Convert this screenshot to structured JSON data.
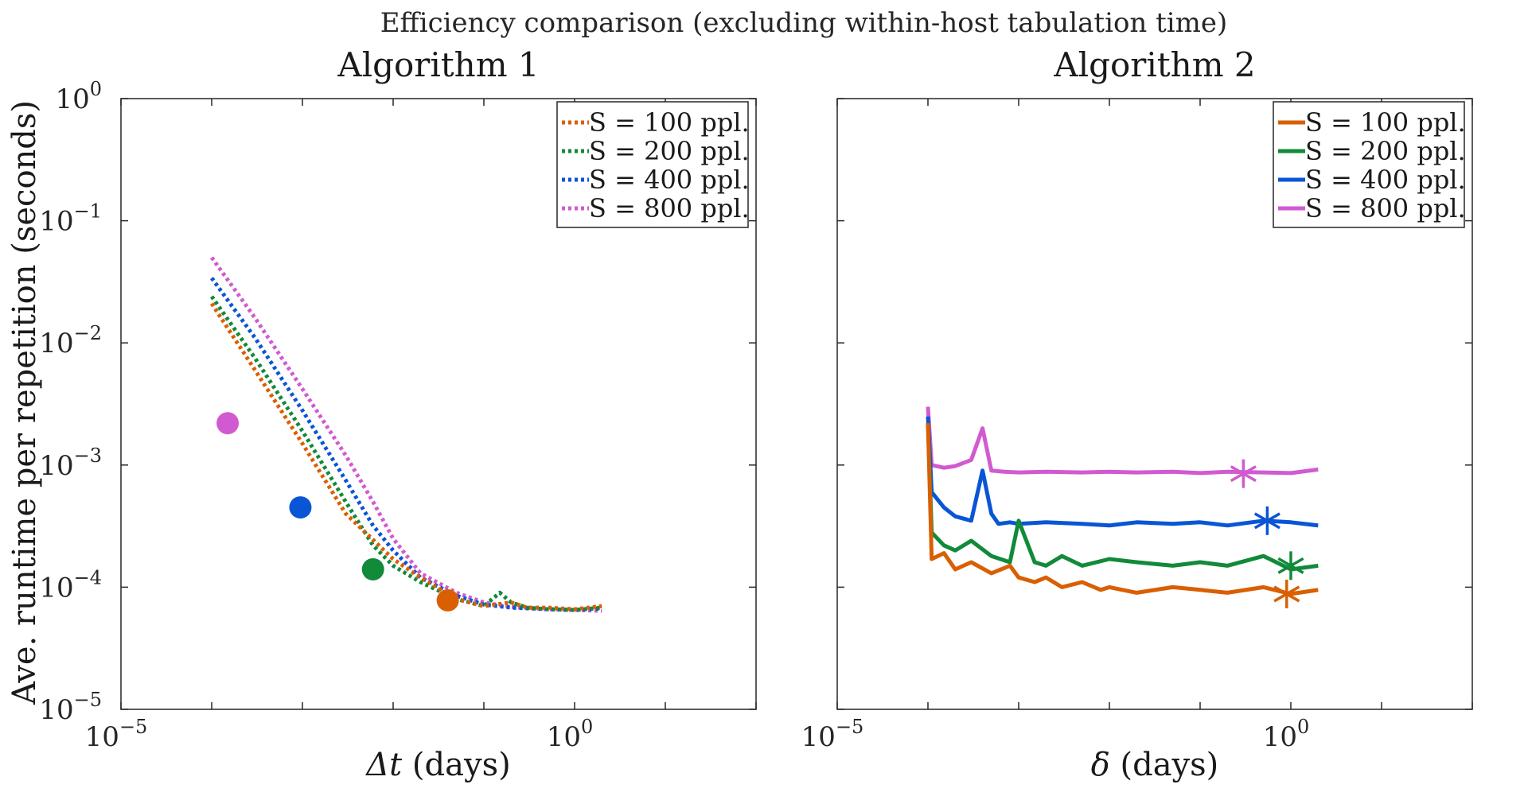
{
  "figure": {
    "title": "Efficiency comparison (excluding within-host tabulation time)",
    "ylabel": "Ave. runtime per repetition (seconds)"
  },
  "colors": {
    "s100": "#d95f02",
    "s200": "#118a3a",
    "s400": "#0a55d6",
    "s800": "#d15ad1"
  },
  "chart_data": [
    {
      "type": "line",
      "title": "Algorithm 1",
      "xlabel_symbol": "Δt",
      "xlabel_rest": " (days)",
      "xscale": "log",
      "yscale": "log",
      "xlim": [
        1e-05,
        100.0
      ],
      "ylim": [
        1e-05,
        1
      ],
      "x_ticks": [
        {
          "base": "10",
          "exp": "−5",
          "v": 1e-05
        },
        {
          "base": "10",
          "exp": "0",
          "v": 1
        }
      ],
      "y_ticks": [
        {
          "base": "10",
          "exp": "0",
          "v": 1
        },
        {
          "base": "10",
          "exp": "−1",
          "v": 0.1
        },
        {
          "base": "10",
          "exp": "−2",
          "v": 0.01
        },
        {
          "base": "10",
          "exp": "−3",
          "v": 0.001
        },
        {
          "base": "10",
          "exp": "−4",
          "v": 0.0001
        },
        {
          "base": "10",
          "exp": "−5",
          "v": 1e-05
        }
      ],
      "line_style": "dotted",
      "marker": "circle",
      "legend_position": "top-right",
      "series": [
        {
          "name": "S = 100 ppl.",
          "color_key": "s100",
          "x": [
            0.0001,
            0.0003,
            0.001,
            0.003,
            0.01,
            0.02,
            0.05,
            0.1,
            0.2,
            0.3,
            0.5,
            1,
            2
          ],
          "y": [
            0.021,
            0.006,
            0.0015,
            0.0004,
            0.00017,
            0.00012,
            8e-05,
            7e-05,
            7.5e-05,
            6.8e-05,
            6.8e-05,
            6.6e-05,
            7e-05
          ],
          "marker": {
            "x": 0.04,
            "y": 7.8e-05
          }
        },
        {
          "name": "S = 200 ppl.",
          "color_key": "s200",
          "x": [
            0.0001,
            0.0003,
            0.001,
            0.003,
            0.006,
            0.01,
            0.02,
            0.05,
            0.1,
            0.15,
            0.2,
            0.3,
            0.5,
            1,
            2
          ],
          "y": [
            0.024,
            0.0075,
            0.0019,
            0.0005,
            0.00022,
            0.00015,
            0.00011,
            8e-05,
            7e-05,
            9e-05,
            7.5e-05,
            6.8e-05,
            6.6e-05,
            6.5e-05,
            6.8e-05
          ],
          "marker": {
            "x": 0.006,
            "y": 0.00014
          }
        },
        {
          "name": "S = 400 ppl.",
          "color_key": "s400",
          "x": [
            0.0001,
            0.0003,
            0.001,
            0.003,
            0.006,
            0.01,
            0.02,
            0.05,
            0.1,
            0.2,
            0.5,
            1,
            2
          ],
          "y": [
            0.034,
            0.011,
            0.0028,
            0.00075,
            0.00032,
            0.0002,
            0.00012,
            8.5e-05,
            7.2e-05,
            6.8e-05,
            6.6e-05,
            6.5e-05,
            6.7e-05
          ],
          "marker": {
            "x": 0.00095,
            "y": 0.00045
          }
        },
        {
          "name": "S = 800 ppl.",
          "color_key": "s800",
          "x": [
            0.0001,
            0.0003,
            0.001,
            0.003,
            0.006,
            0.01,
            0.02,
            0.05,
            0.1,
            0.2,
            0.5,
            1,
            2
          ],
          "y": [
            0.05,
            0.016,
            0.0042,
            0.0012,
            0.0005,
            0.00025,
            0.00013,
            9e-05,
            7.5e-05,
            6.9e-05,
            6.6e-05,
            6.5e-05,
            6.4e-05
          ],
          "marker": {
            "x": 0.00015,
            "y": 0.0022
          }
        }
      ]
    },
    {
      "type": "line",
      "title": "Algorithm 2",
      "xlabel_symbol": "δ",
      "xlabel_rest": " (days)",
      "xscale": "log",
      "yscale": "log",
      "xlim": [
        1e-05,
        100.0
      ],
      "ylim": [
        1e-05,
        1
      ],
      "x_ticks": [
        {
          "base": "10",
          "exp": "−5",
          "v": 1e-05
        },
        {
          "base": "10",
          "exp": "0",
          "v": 1
        }
      ],
      "y_ticks": [],
      "line_style": "solid",
      "marker": "asterisk",
      "legend_position": "top-right",
      "series": [
        {
          "name": "S = 100 ppl.",
          "color_key": "s100",
          "x": [
            0.0001,
            0.00011,
            0.00015,
            0.0002,
            0.0003,
            0.0005,
            0.0008,
            0.001,
            0.0015,
            0.002,
            0.003,
            0.005,
            0.008,
            0.01,
            0.02,
            0.05,
            0.1,
            0.2,
            0.5,
            1,
            2
          ],
          "y": [
            0.0022,
            0.00017,
            0.00019,
            0.00014,
            0.00016,
            0.00013,
            0.00015,
            0.00012,
            0.00011,
            0.00012,
            0.0001,
            0.00011,
            9.5e-05,
            0.0001,
            9e-05,
            0.0001,
            9.5e-05,
            9e-05,
            0.0001,
            8.8e-05,
            9.5e-05
          ],
          "marker": {
            "x": 0.9,
            "y": 8.8e-05
          }
        },
        {
          "name": "S = 200 ppl.",
          "color_key": "s200",
          "x": [
            0.0001,
            0.00011,
            0.00015,
            0.0002,
            0.0003,
            0.0005,
            0.0008,
            0.001,
            0.0015,
            0.002,
            0.003,
            0.005,
            0.01,
            0.02,
            0.05,
            0.1,
            0.2,
            0.5,
            1,
            2
          ],
          "y": [
            0.0022,
            0.00028,
            0.00022,
            0.0002,
            0.00024,
            0.00018,
            0.00016,
            0.00035,
            0.00016,
            0.00015,
            0.00018,
            0.00015,
            0.00017,
            0.00016,
            0.00015,
            0.00016,
            0.00015,
            0.00018,
            0.00014,
            0.00015
          ],
          "marker": {
            "x": 1.0,
            "y": 0.00015
          }
        },
        {
          "name": "S = 400 ppl.",
          "color_key": "s400",
          "x": [
            0.0001,
            0.00011,
            0.00015,
            0.0002,
            0.0003,
            0.0004,
            0.0005,
            0.0006,
            0.0008,
            0.001,
            0.002,
            0.005,
            0.01,
            0.02,
            0.05,
            0.1,
            0.2,
            0.5,
            1,
            2
          ],
          "y": [
            0.0025,
            0.0006,
            0.00045,
            0.00038,
            0.00035,
            0.0009,
            0.0004,
            0.00033,
            0.00034,
            0.00033,
            0.00034,
            0.00033,
            0.00032,
            0.00034,
            0.00033,
            0.00034,
            0.00032,
            0.00035,
            0.00034,
            0.00032
          ],
          "marker": {
            "x": 0.55,
            "y": 0.00035
          }
        },
        {
          "name": "S = 800 ppl.",
          "color_key": "s800",
          "x": [
            0.0001,
            0.00011,
            0.00015,
            0.0002,
            0.0003,
            0.0004,
            0.0005,
            0.0007,
            0.001,
            0.002,
            0.005,
            0.01,
            0.02,
            0.05,
            0.1,
            0.2,
            0.5,
            1,
            2
          ],
          "y": [
            0.003,
            0.001,
            0.00095,
            0.00098,
            0.0011,
            0.002,
            0.0009,
            0.00088,
            0.00087,
            0.00088,
            0.00087,
            0.00088,
            0.00087,
            0.00088,
            0.00086,
            0.00088,
            0.00087,
            0.00086,
            0.00092
          ],
          "marker": {
            "x": 0.3,
            "y": 0.00085
          }
        }
      ]
    }
  ]
}
